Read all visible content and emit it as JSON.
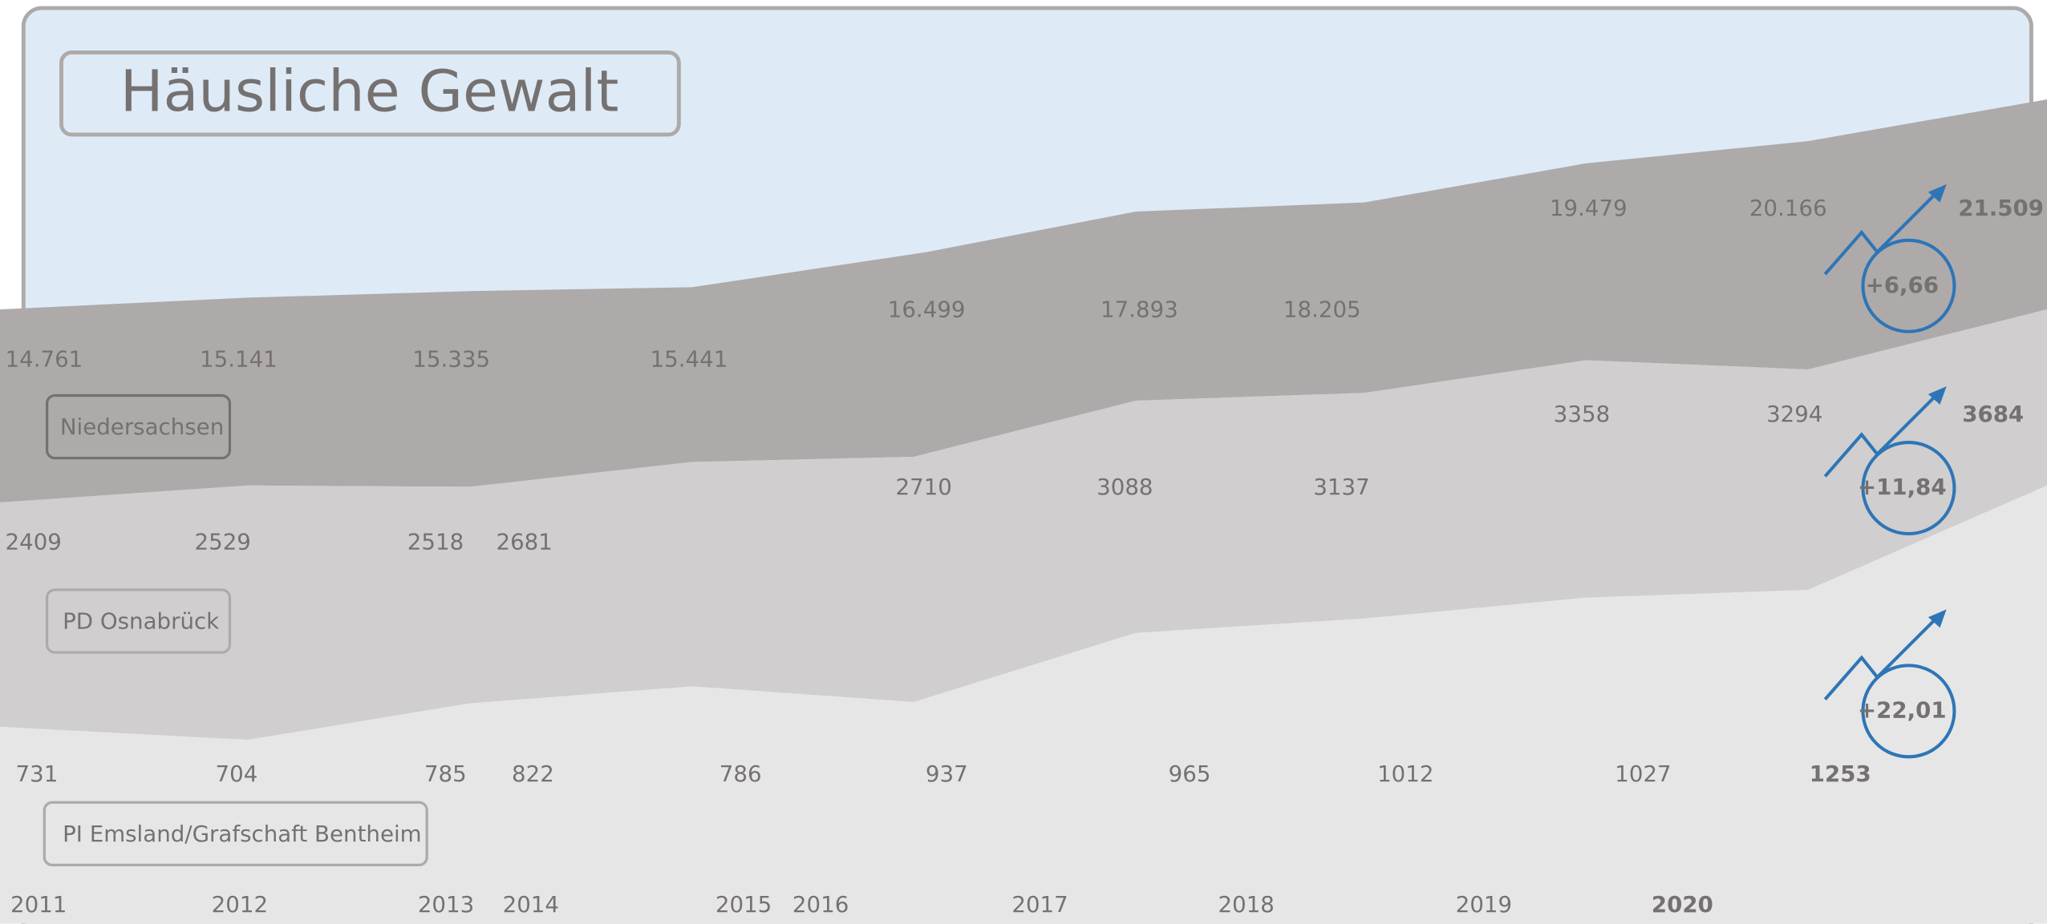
{
  "title": "Häusliche Gewalt",
  "regions": [
    {
      "name": "Niedersachsen",
      "values": [
        "14.761",
        "15.141",
        "15.335",
        "15.441",
        "16.499",
        "17.893",
        "18.205",
        "19.479",
        "20.166",
        "21.509"
      ],
      "change": "+6,66"
    },
    {
      "name": "PD Osnabrück",
      "values": [
        "2409",
        "2529",
        "2518",
        "2681",
        "2710",
        "3088",
        "3137",
        "3358",
        "3294",
        "3684"
      ],
      "change": "+11,84"
    },
    {
      "name": "PI Emsland/Grafschaft Bentheim",
      "values": [
        "731",
        "704",
        "785",
        "822",
        "786",
        "937",
        "965",
        "1012",
        "1027",
        "1253"
      ],
      "change": "+22,01"
    }
  ],
  "years": [
    "2011",
    "2012",
    "2013",
    "2014",
    "2015",
    "2016",
    "2017",
    "2018",
    "2019",
    "2020"
  ]
}
